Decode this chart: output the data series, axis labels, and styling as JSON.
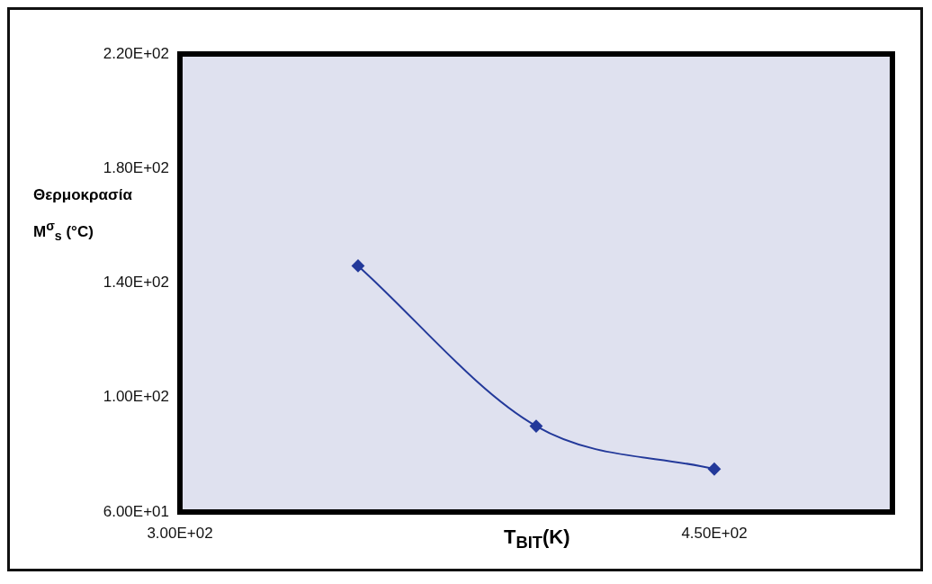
{
  "chart_data": {
    "type": "line",
    "xlabel": "T$_{BIT}$(K)",
    "ylabel": "Θερμοκρασία M$^{σ}$$_{s}$ (°C)",
    "x": [
      350,
      400,
      450
    ],
    "series": [
      {
        "color": "#23399a",
        "values": [
          146,
          90,
          75
        ]
      }
    ],
    "xlim": [
      300,
      500
    ],
    "xticks": [
      {
        "value": 300,
        "label": "3.00E+02"
      },
      {
        "value": 450,
        "label": "4.50E+02"
      }
    ],
    "ylim": [
      60,
      220
    ],
    "yticks": [
      {
        "value": 60,
        "label": "6.00E+01"
      },
      {
        "value": 100,
        "label": "1.00E+02"
      },
      {
        "value": 140,
        "label": "1.40E+02"
      },
      {
        "value": 180,
        "label": "1.80E+02"
      },
      {
        "value": 220,
        "label": "2.20E+02"
      }
    ],
    "grid": false,
    "legend": false,
    "marker": "diamond",
    "line_style": "solid"
  }
}
